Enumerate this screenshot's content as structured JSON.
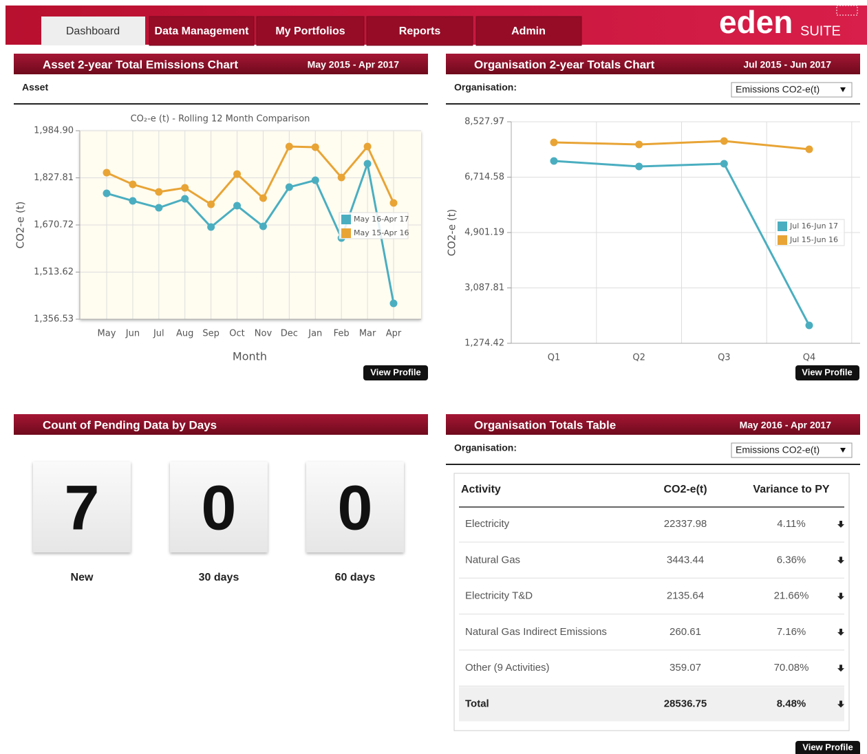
{
  "nav": {
    "tabs": [
      "Dashboard",
      "Data Management",
      "My Portfolios",
      "Reports",
      "Admin"
    ]
  },
  "logo": {
    "main": "eden",
    "suffix": "SUITE"
  },
  "panels": [
    {
      "title": "Asset 2-year Total Emissions Chart",
      "period": "May 2015 - Apr 2017",
      "field": "Asset",
      "button": "View Profile"
    },
    {
      "title": "Organisation 2-year Totals Chart",
      "period": "Jul 2015 - Jun 2017",
      "field": "Organisation:",
      "select": "Emissions CO2-e(t)",
      "button": "View Profile"
    },
    {
      "title": "Count of Pending Data by Days",
      "counts": [
        {
          "value": 7,
          "label": "New"
        },
        {
          "value": 0,
          "label": "30 days"
        },
        {
          "value": 0,
          "label": "60 days"
        }
      ]
    },
    {
      "title": "Organisation Totals Table",
      "period": "May 2016 - Apr 2017",
      "field": "Organisation:",
      "select": "Emissions CO2-e(t)",
      "button": "View Profile"
    }
  ],
  "table": {
    "header": [
      "Activity",
      "CO2-e(t)",
      "Variance to PY"
    ],
    "rows": [
      [
        "Electricity",
        "22337.98",
        "4.11%"
      ],
      [
        "Natural Gas",
        "3443.44",
        "6.36%"
      ],
      [
        "Electricity T&D",
        "2135.64",
        "21.66%"
      ],
      [
        "Natural Gas Indirect Emissions",
        "260.61",
        "7.16%"
      ],
      [
        "Other (9 Activities)",
        "359.07",
        "70.08%"
      ]
    ],
    "total": [
      "Total",
      "28536.75",
      "8.48%"
    ]
  },
  "chart_data": [
    {
      "type": "line",
      "title": "CO₂-e (t) - Rolling 12 Month Comparison",
      "x_label": "Month",
      "y_label": "CO2-e (t)",
      "categories": [
        "May",
        "Jun",
        "Jul",
        "Aug",
        "Sep",
        "Oct",
        "Nov",
        "Dec",
        "Jan",
        "Feb",
        "Mar",
        "Apr"
      ],
      "series": [
        {
          "name": "May 16-Apr 17",
          "color": "#4aaec0",
          "values": [
            1776.2,
            1751.0,
            1728.0,
            1757.9,
            1663.8,
            1734.9,
            1666.1,
            1796.8,
            1819.8,
            1627.1,
            1874.8,
            1409.3
          ]
        },
        {
          "name": "May 15-Apr 16",
          "color": "#e8a435",
          "values": [
            1845.0,
            1806.0,
            1780.8,
            1794.5,
            1739.5,
            1840.4,
            1760.1,
            1932.2,
            1929.9,
            1829.0,
            1932.2,
            1744.1
          ]
        }
      ],
      "ylim": [
        1356.53,
        1984.9
      ],
      "yticks": [
        {
          "value": 1356.53,
          "label": "1,356.53"
        },
        {
          "value": 1513.62,
          "label": "1,513.62"
        },
        {
          "value": 1670.72,
          "label": "1,670.72"
        },
        {
          "value": 1827.81,
          "label": "1,827.81"
        },
        {
          "value": 1984.9,
          "label": "1,984.90"
        }
      ],
      "grid": true,
      "legend": "right"
    },
    {
      "type": "line",
      "y_label": "CO2-e (t)",
      "categories": [
        "Q1",
        "Q2",
        "Q3",
        "Q4"
      ],
      "series": [
        {
          "name": "Jul 16-Jun 17",
          "color": "#4aaec0",
          "values": [
            7244.0,
            7063.7,
            7153.9,
            1860.0
          ]
        },
        {
          "name": "Jul 15-Jun 16",
          "color": "#e8a435",
          "values": [
            7852.2,
            7784.6,
            7897.2,
            7626.9
          ]
        }
      ],
      "ylim": [
        1274.42,
        8527.97
      ],
      "yticks": [
        {
          "value": 1274.42,
          "label": "1,274.42"
        },
        {
          "value": 3087.81,
          "label": "3,087.81"
        },
        {
          "value": 4901.19,
          "label": "4,901.19"
        },
        {
          "value": 6714.58,
          "label": "6,714.58"
        },
        {
          "value": 8527.97,
          "label": "8,527.97"
        }
      ],
      "grid": true,
      "legend": "right"
    }
  ]
}
